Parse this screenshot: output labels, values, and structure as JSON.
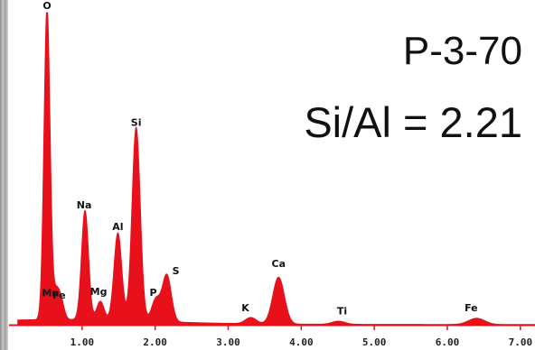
{
  "chart_data": {
    "type": "area",
    "title": "P-3-70",
    "subtitle": "Si/Al = 2.21",
    "xlabel": "",
    "ylabel": "",
    "xlim": [
      0,
      7.2
    ],
    "ylim": [
      0,
      100
    ],
    "grid": false,
    "xticks": [
      {
        "value": 1,
        "label": "1.00"
      },
      {
        "value": 2,
        "label": "2.00"
      },
      {
        "value": 3,
        "label": "3.00"
      },
      {
        "value": 4,
        "label": "4.00"
      },
      {
        "value": 5,
        "label": "5.00"
      },
      {
        "value": 6,
        "label": "6.00"
      },
      {
        "value": 7,
        "label": "7.00"
      }
    ],
    "series": [
      {
        "color": "#e8101a",
        "peaks": [
          {
            "label": "O",
            "energy": 0.52,
            "counts": 100
          },
          {
            "label": "Mn",
            "energy": 0.64,
            "counts": 8
          },
          {
            "label": "Fe",
            "energy": 0.71,
            "counts": 6
          },
          {
            "label": "Na",
            "energy": 1.04,
            "counts": 35
          },
          {
            "label": "Mg",
            "energy": 1.25,
            "counts": 6
          },
          {
            "label": "Al",
            "energy": 1.49,
            "counts": 28
          },
          {
            "label": "Si",
            "energy": 1.74,
            "counts": 62
          },
          {
            "label": "P",
            "energy": 2.01,
            "counts": 7
          },
          {
            "label": "S",
            "energy": 2.16,
            "counts": 15
          },
          {
            "label": "K",
            "energy": 3.31,
            "counts": 2
          },
          {
            "label": "Ca",
            "energy": 3.69,
            "counts": 15
          },
          {
            "label": "Ti",
            "energy": 4.51,
            "counts": 1
          },
          {
            "label": "Fe",
            "energy": 6.4,
            "counts": 2
          }
        ]
      }
    ],
    "annotations": [
      {
        "text": "O",
        "x": 0.52,
        "y": 100
      },
      {
        "text": "Si",
        "x": 1.74,
        "y": 62
      },
      {
        "text": "Na",
        "x": 1.04,
        "y": 35
      },
      {
        "text": "Al",
        "x": 1.49,
        "y": 28
      },
      {
        "text": "Mn",
        "x": 0.64,
        "y": 8
      },
      {
        "text": "Fe",
        "x": 0.71,
        "y": 6
      },
      {
        "text": "Mg",
        "x": 1.25,
        "y": 6
      },
      {
        "text": "P",
        "x": 2.01,
        "y": 7
      },
      {
        "text": "S",
        "x": 2.16,
        "y": 15
      },
      {
        "text": "Ca",
        "x": 3.69,
        "y": 15
      },
      {
        "text": "K",
        "x": 3.31,
        "y": 2
      },
      {
        "text": "Ti",
        "x": 4.51,
        "y": 1
      },
      {
        "text": "Fe",
        "x": 6.4,
        "y": 2
      }
    ]
  }
}
